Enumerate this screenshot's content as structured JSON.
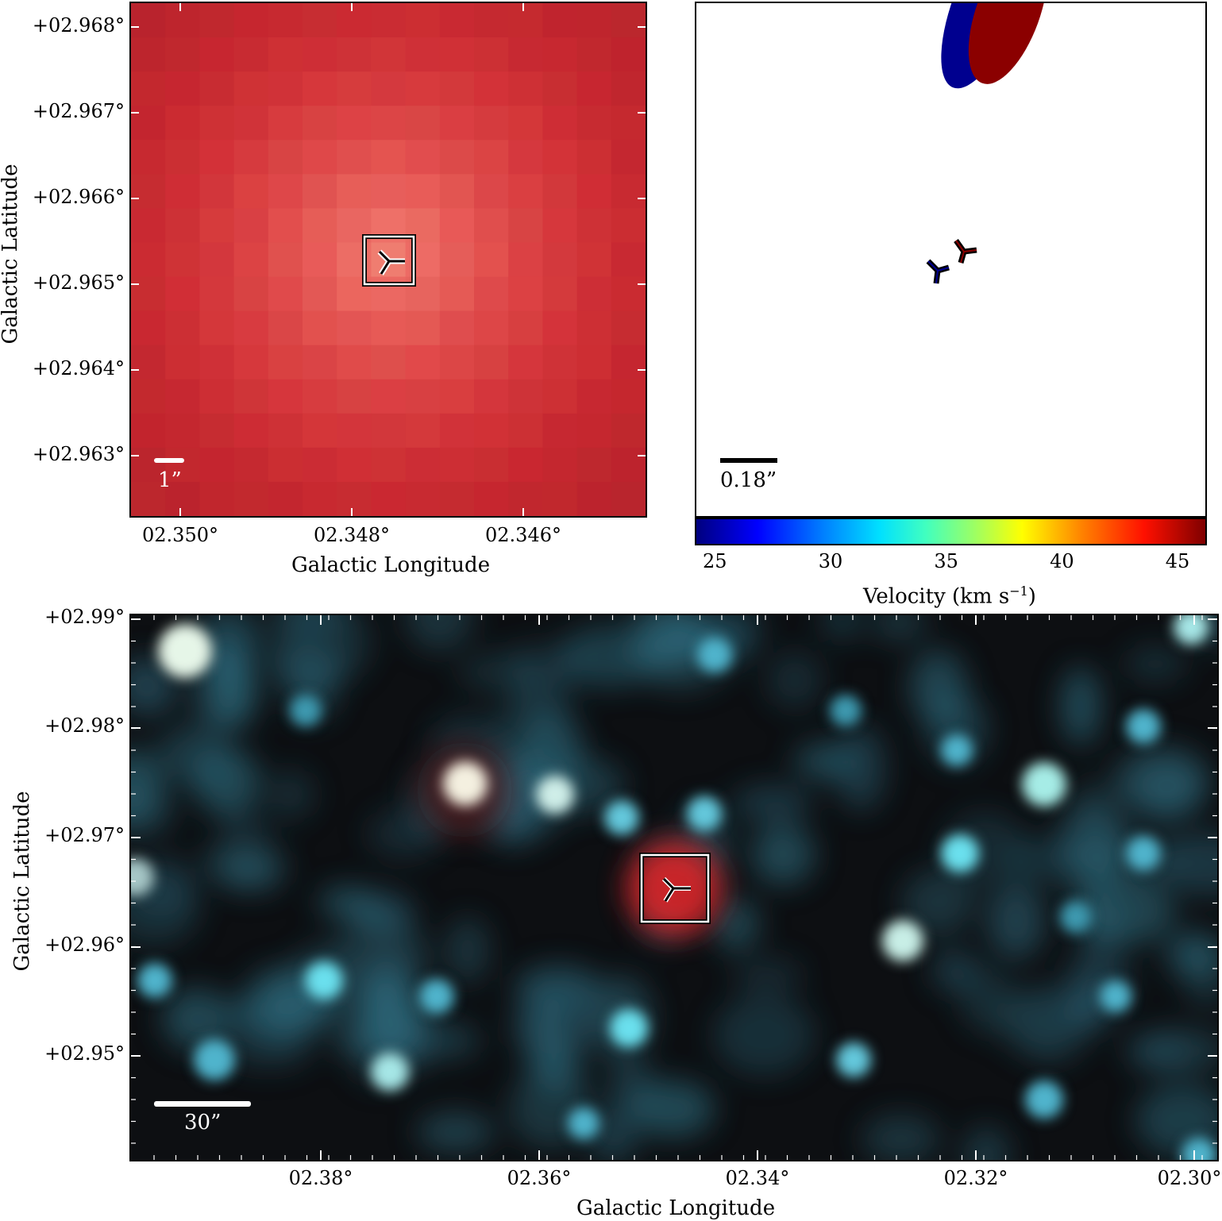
{
  "top_left": {
    "y_ticks": [
      "+02.968°",
      "+02.967°",
      "+02.966°",
      "+02.965°",
      "+02.964°",
      "+02.963°"
    ],
    "x_ticks": [
      "02.350°",
      "02.348°",
      "02.346°"
    ],
    "xlabel": "Galactic Longitude",
    "ylabel": "Galactic Latitude",
    "scale_bar": "1”",
    "colors": {
      "pixel_base": "#e03a3a",
      "bar": "#ffffff"
    }
  },
  "top_right": {
    "scale_bar": "0.18”",
    "colorbar": {
      "ticks": [
        "25",
        "30",
        "35",
        "40",
        "45"
      ],
      "label": "Velocity (km s",
      "label_sup": "−1",
      "label_end": ")",
      "range": [
        24.2,
        46.2
      ]
    },
    "ellipses": [
      {
        "velocity": 24.5,
        "color": "#00008f"
      },
      {
        "velocity": 46.0,
        "color": "#8b0000"
      }
    ]
  },
  "bottom": {
    "y_ticks": [
      "+02.99°",
      "+02.98°",
      "+02.97°",
      "+02.96°",
      "+02.95°"
    ],
    "x_ticks": [
      "02.38°",
      "02.36°",
      "02.34°",
      "02.32°",
      "02.30°"
    ],
    "xlabel": "Galactic Longitude",
    "ylabel": "Galactic Latitude",
    "scale_bar": "30”",
    "colors": {
      "background": "#0d0f12",
      "stars": "#4fc3d6",
      "source": "#e8262a"
    }
  }
}
